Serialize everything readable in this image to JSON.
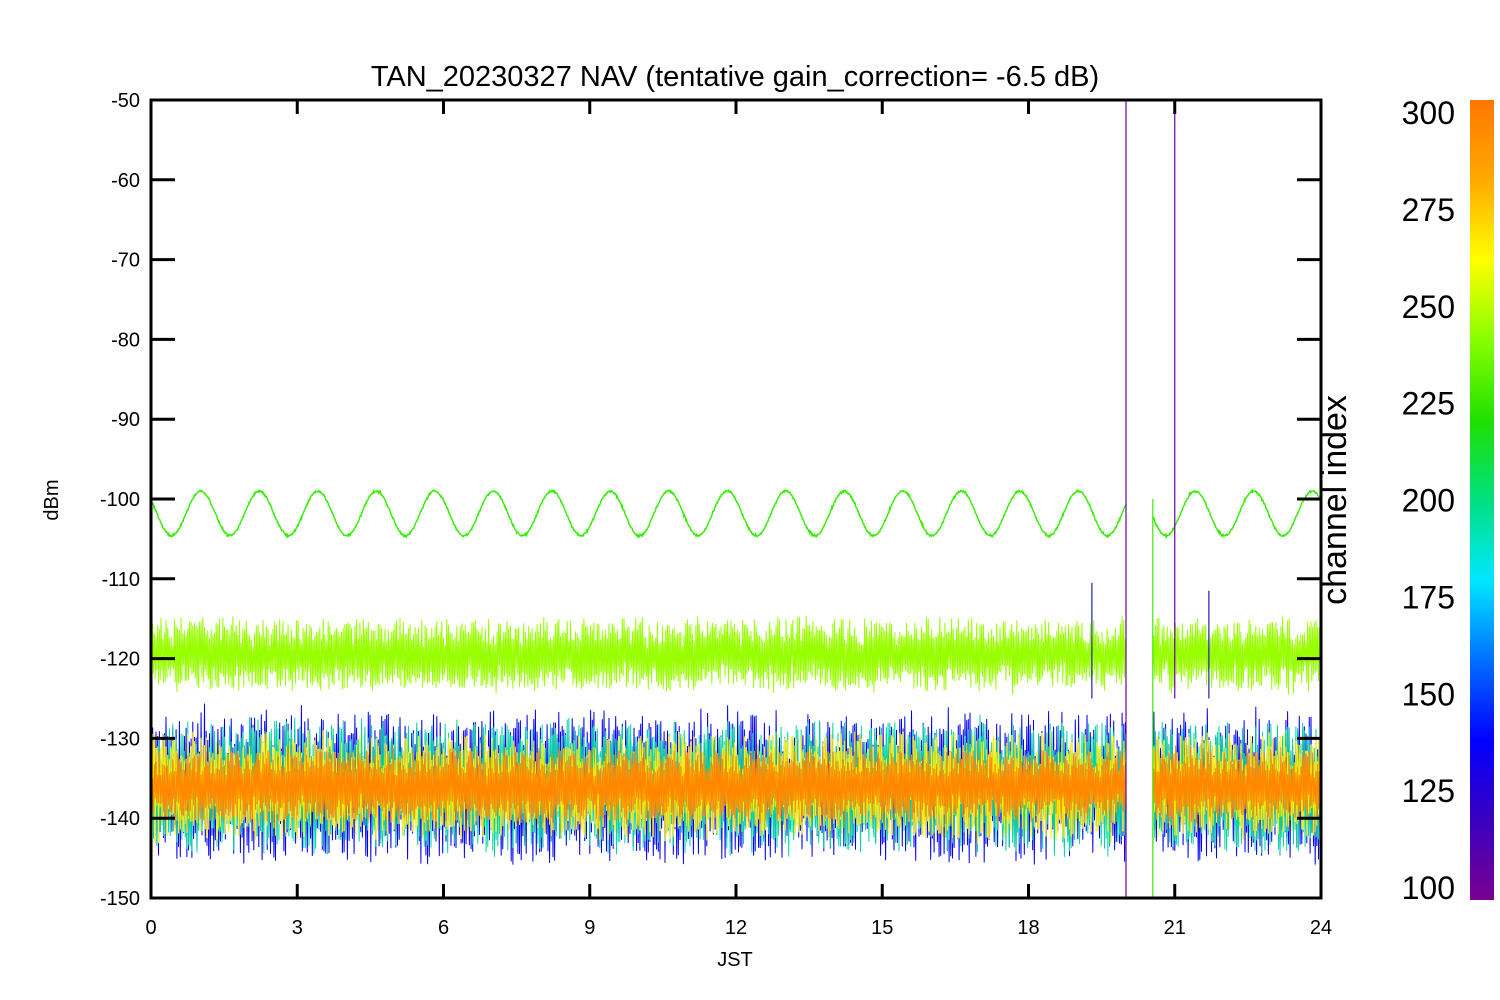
{
  "chart_data": {
    "type": "line",
    "title": "TAN_20230327 NAV (tentative gain_correction= -6.5 dB)",
    "xlabel": "JST",
    "ylabel": "dBm",
    "xlim": [
      0,
      24
    ],
    "ylim": [
      -150,
      -50
    ],
    "xticks": [
      "0",
      "3",
      "6",
      "9",
      "12",
      "15",
      "18",
      "21",
      "24"
    ],
    "yticks": [
      "-50",
      "-60",
      "-70",
      "-80",
      "-90",
      "-100",
      "-110",
      "-120",
      "-130",
      "-140",
      "-150"
    ],
    "grid": false,
    "data_gap": [
      20.0,
      20.55
    ],
    "colorbar": {
      "title": "channel index",
      "range": [
        100,
        300
      ],
      "ticks": [
        "300",
        "275",
        "250",
        "225",
        "200",
        "175",
        "150",
        "125",
        "100"
      ]
    },
    "series": [
      {
        "channel_index": 245,
        "color": "#33ee00",
        "kind": "diurnal-oscillation",
        "mean": -101.8,
        "amplitude": 2.8,
        "periods_per_day": 20
      },
      {
        "channel_index": 255,
        "color": "#99ff00",
        "kind": "noise-band",
        "mean": -119.5,
        "spread": 4.5
      },
      {
        "channel_index": 130,
        "color": "#0000ee",
        "kind": "noise-band",
        "mean": -136,
        "spread": 9
      },
      {
        "channel_index": 180,
        "color": "#00d8a0",
        "kind": "noise-band",
        "mean": -136,
        "spread": 8
      },
      {
        "channel_index": 260,
        "color": "#ffee00",
        "kind": "noise-band",
        "mean": -136,
        "spread": 6.5
      },
      {
        "channel_index": 285,
        "color": "#ff8800",
        "kind": "noise-band",
        "mean": -136,
        "spread": 4.5
      }
    ],
    "spikes": [
      {
        "x": 20.0,
        "y_top": -50,
        "y_bottom": -150,
        "color": "#6a00a0"
      },
      {
        "x": 21.0,
        "y_top": -50,
        "y_bottom": -125,
        "color": "#6a00a0"
      },
      {
        "x": 20.55,
        "y_top": -100,
        "y_bottom": -150,
        "color": "#33ee00"
      },
      {
        "x": 19.3,
        "y_top": -110.5,
        "y_bottom": -125,
        "color": "#2020b0"
      },
      {
        "x": 21.7,
        "y_top": -111.5,
        "y_bottom": -125,
        "color": "#2020b0"
      }
    ]
  }
}
